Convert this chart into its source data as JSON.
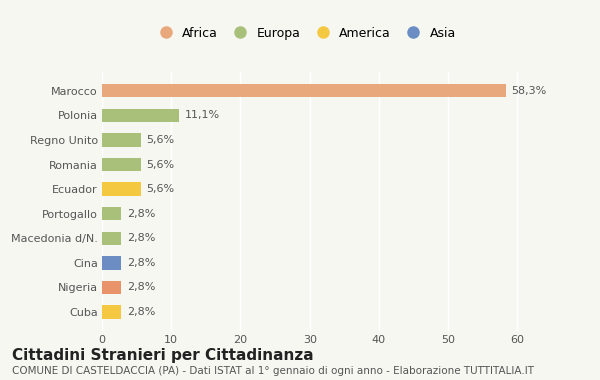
{
  "categories": [
    "Cuba",
    "Nigeria",
    "Cina",
    "Macedonia d/N.",
    "Portogallo",
    "Ecuador",
    "Romania",
    "Regno Unito",
    "Polonia",
    "Marocco"
  ],
  "values": [
    2.8,
    2.8,
    2.8,
    2.8,
    2.8,
    5.6,
    5.6,
    5.6,
    11.1,
    58.3
  ],
  "colors": [
    "#F5C842",
    "#E8936A",
    "#6B8DC4",
    "#A8C07A",
    "#A8C07A",
    "#F5C842",
    "#A8C07A",
    "#A8C07A",
    "#A8C07A",
    "#E8A87C"
  ],
  "labels": [
    "2,8%",
    "2,8%",
    "2,8%",
    "2,8%",
    "2,8%",
    "5,6%",
    "5,6%",
    "5,6%",
    "11,1%",
    "58,3%"
  ],
  "legend_labels": [
    "Africa",
    "Europa",
    "America",
    "Asia"
  ],
  "legend_colors": [
    "#E8A87C",
    "#A8C07A",
    "#F5C842",
    "#6B8DC4"
  ],
  "title": "Cittadini Stranieri per Cittadinanza",
  "subtitle": "COMUNE DI CASTELDACCIA (PA) - Dati ISTAT al 1° gennaio di ogni anno - Elaborazione TUTTITALIA.IT",
  "xlim": [
    0,
    65
  ],
  "xticks": [
    0,
    10,
    20,
    30,
    40,
    50,
    60
  ],
  "background_color": "#f7f7f2",
  "bar_height": 0.55,
  "title_fontsize": 11,
  "subtitle_fontsize": 7.5,
  "label_fontsize": 8,
  "tick_fontsize": 8,
  "legend_fontsize": 9
}
